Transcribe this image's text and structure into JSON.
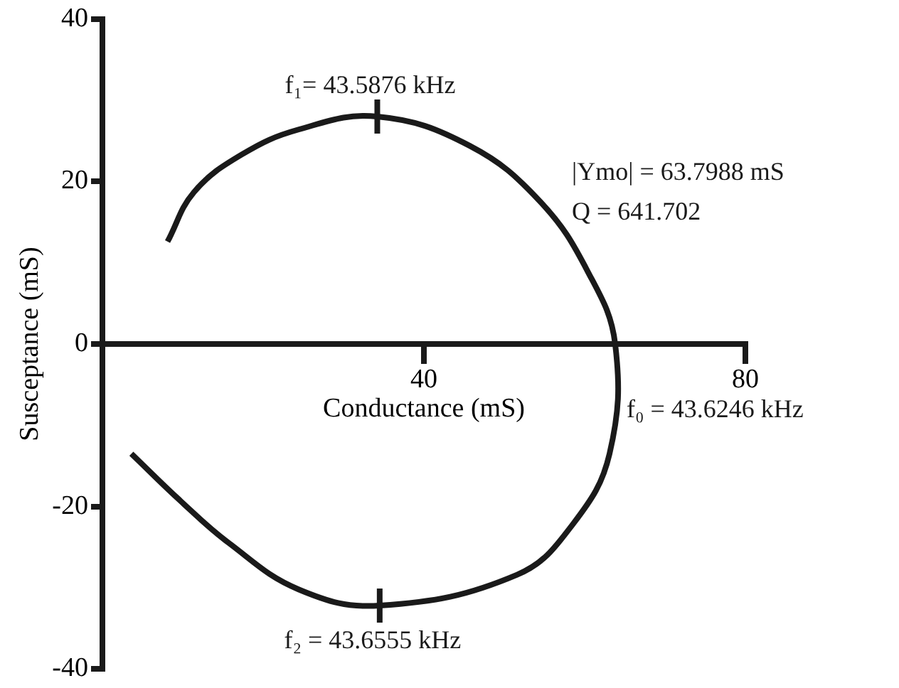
{
  "chart_data": {
    "type": "line",
    "xlabel": "Conductance (mS)",
    "ylabel": "Susceptance (mS)",
    "xlim": [
      0,
      80
    ],
    "ylim": [
      -40,
      40
    ],
    "xticks": [
      40,
      80
    ],
    "yticks": [
      -40,
      -20,
      0,
      20,
      40
    ],
    "marker": "none",
    "line_style": "solid",
    "legend": false,
    "series": [
      {
        "color": "#1a1a1a",
        "x": [
          8.1,
          11.4,
          17.3,
          24.4,
          34.2,
          45.7,
          54.5,
          60.4,
          63.8,
          63.1,
          58.6,
          51.6,
          34.5,
          24.4,
          15.6,
          9.7,
          3.6
        ],
        "values": [
          12.6,
          18.7,
          23.3,
          26.4,
          28.0,
          24.4,
          17.5,
          8.9,
          0,
          -13.5,
          -22.1,
          -28.4,
          -32.2,
          -30.2,
          -24.4,
          -19.3,
          -13.5
        ]
      }
    ],
    "annotations": [
      {
        "text": "f₁= 43.5876 kHz",
        "x": 34.2,
        "y": 28.0
      },
      {
        "text": "f₀ = 43.6246 kHz",
        "x": 63.8,
        "y": 0
      },
      {
        "text": "f₂ = 43.6555 kHz",
        "x": 34.5,
        "y": -32.2
      },
      "|Ymo| = 63.7988 mS",
      "Q = 641.702"
    ]
  }
}
